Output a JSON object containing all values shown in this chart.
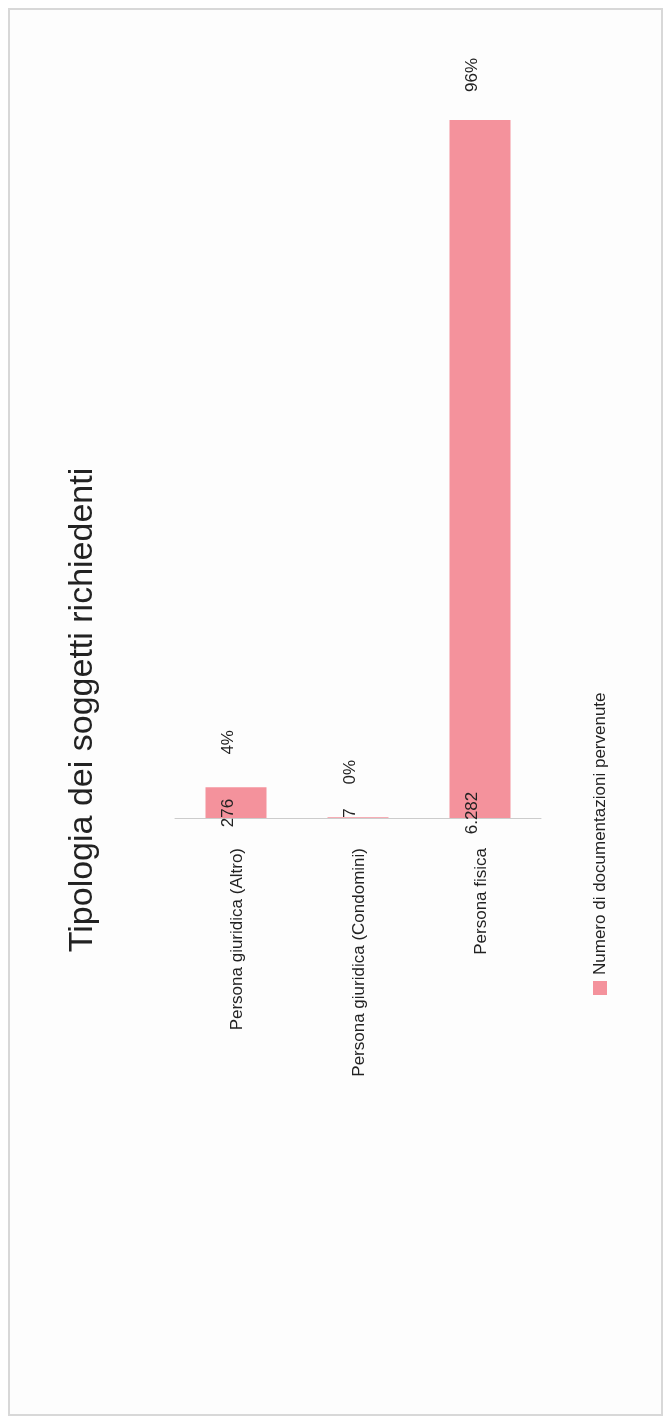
{
  "chart_data": {
    "type": "bar",
    "title": "Tipologia dei soggetti richiedenti",
    "categories": [
      "Persona giuridica (Altro)",
      "Persona giuridica (Condomini)",
      "Persona fisica"
    ],
    "series": [
      {
        "name": "Numero di documentazioni pervenute",
        "color": "#f4929c",
        "values": [
          276,
          7,
          6282
        ],
        "value_labels": [
          "276",
          "7",
          "6.282"
        ]
      }
    ],
    "annotations": [
      {
        "text": "4%",
        "x": "Persona giuridica (Altro)",
        "y": 276
      },
      {
        "text": "0%",
        "x": "Persona giuridica (Condomini)",
        "y": 7
      },
      {
        "text": "96%",
        "x": "Persona fisica",
        "y": 6282
      }
    ],
    "legend": "bottom",
    "grid": false
  }
}
